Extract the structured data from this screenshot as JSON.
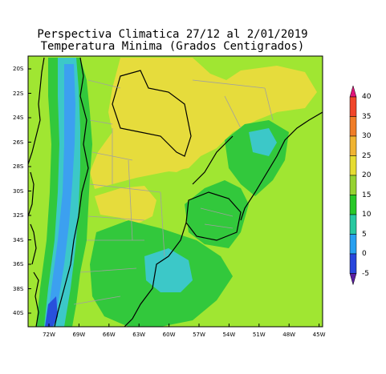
{
  "title_line1": "Perspectiva Climatica 27/12 al 2/01/2019",
  "title_line2": "Temperatura Minima (Grados Centigrados)",
  "lat_labels": [
    "20S",
    "22S",
    "24S",
    "26S",
    "28S",
    "30S",
    "32S",
    "34S",
    "36S",
    "38S",
    "40S"
  ],
  "lon_labels": [
    "72W",
    "69W",
    "66W",
    "63W",
    "60W",
    "57W",
    "54W",
    "51W",
    "48W",
    "45W"
  ],
  "legend": {
    "labels": [
      "40",
      "35",
      "30",
      "25",
      "20",
      "15",
      "10",
      "5",
      "0",
      "-5"
    ],
    "colors": [
      "#e0147a",
      "#f0462a",
      "#f07d28",
      "#f0b432",
      "#e6dc32",
      "#96d232",
      "#28c828",
      "#28c8a0",
      "#28a0f0",
      "#2846dc",
      "#5a1ea0"
    ]
  },
  "map_colors": {
    "band_15_20": "#a0e632",
    "band_20_25": "#e6dc3c",
    "band_10_15": "#32c83c",
    "band_5_10": "#3cc8c8",
    "band_0_5": "#3ca0f0",
    "band_below_0": "#2850dc",
    "coast_line": "#000000",
    "province_line": "#a0a0a0"
  }
}
